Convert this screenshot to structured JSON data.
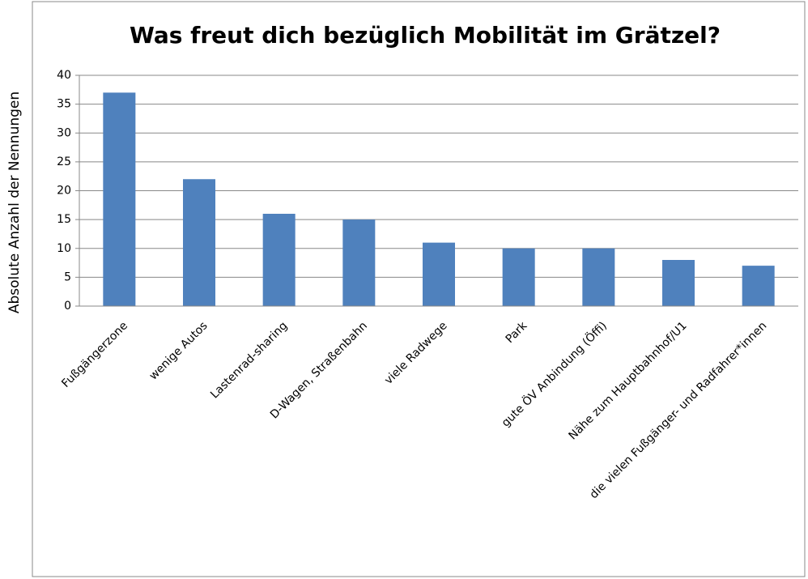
{
  "chart_data": {
    "type": "bar",
    "title": "Was freut dich bezüglich Mobilität im Grätzel?",
    "y_label": "Absolute Anzahl der Nennungen",
    "categories": [
      "Fußgängerzone",
      "wenige Autos",
      "Lastenrad-sharing",
      "D-Wagen, Straßenbahn",
      "viele Radwege",
      "Park",
      "gute ÖV Anbindung (Öffi)",
      "Nähe zum Hauptbahnhof/U1",
      "die vielen Fußgänger- und Radfahrer*innen"
    ],
    "values": [
      37,
      22,
      16,
      15,
      11,
      10,
      10,
      8,
      7
    ],
    "color": "#4f81bd",
    "ylim": [
      0,
      40
    ],
    "yticks": [
      0,
      5,
      10,
      15,
      20,
      25,
      30,
      35,
      40
    ],
    "grid": true
  }
}
